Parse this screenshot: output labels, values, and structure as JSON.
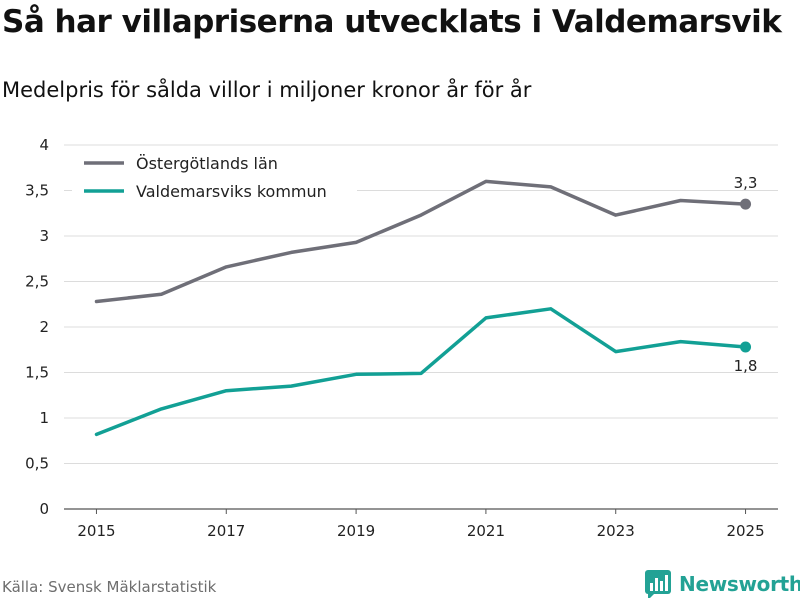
{
  "title": "Så har villapriserna utvecklats i Valdemarsvik",
  "subtitle": "Medelpris för sålda villor i miljoner kronor år för år",
  "source": "Källa: Svensk Mäklarstatistik",
  "brand": {
    "name": "Newsworthy",
    "logo_icon": "bar-chart-logo-icon",
    "color": "#23a295"
  },
  "chart_data": {
    "type": "line",
    "title": "Så har villapriserna utvecklats i Valdemarsvik",
    "subtitle": "Medelpris för sålda villor i miljoner kronor år för år",
    "xlabel": "",
    "ylabel": "",
    "x": [
      2015,
      2016,
      2017,
      2018,
      2019,
      2020,
      2021,
      2022,
      2023,
      2024,
      2025
    ],
    "x_tick_labels": [
      "2015",
      "2017",
      "2019",
      "2021",
      "2023",
      "2025"
    ],
    "x_tick_values": [
      2015,
      2017,
      2019,
      2021,
      2023,
      2025
    ],
    "xlim": [
      2014.5,
      2025.5
    ],
    "ylim": [
      0,
      4
    ],
    "y_tick_values": [
      0,
      0.5,
      1,
      1.5,
      2,
      2.5,
      3,
      3.5,
      4
    ],
    "y_tick_labels": [
      "0",
      "0,5",
      "1",
      "1,5",
      "2",
      "2,5",
      "3",
      "3,5",
      "4"
    ],
    "grid": true,
    "legend_position": "top-left",
    "series": [
      {
        "name": "Östergötlands län",
        "color": "#6f6f78",
        "values": [
          2.28,
          2.36,
          2.66,
          2.82,
          2.93,
          3.23,
          3.6,
          3.54,
          3.23,
          3.39,
          3.35
        ],
        "end_label": "3,3"
      },
      {
        "name": "Valdemarsviks kommun",
        "color": "#12a095",
        "values": [
          0.82,
          1.1,
          1.3,
          1.35,
          1.48,
          1.49,
          2.1,
          2.2,
          1.73,
          1.84,
          1.78
        ],
        "end_label": "1,8"
      }
    ]
  }
}
